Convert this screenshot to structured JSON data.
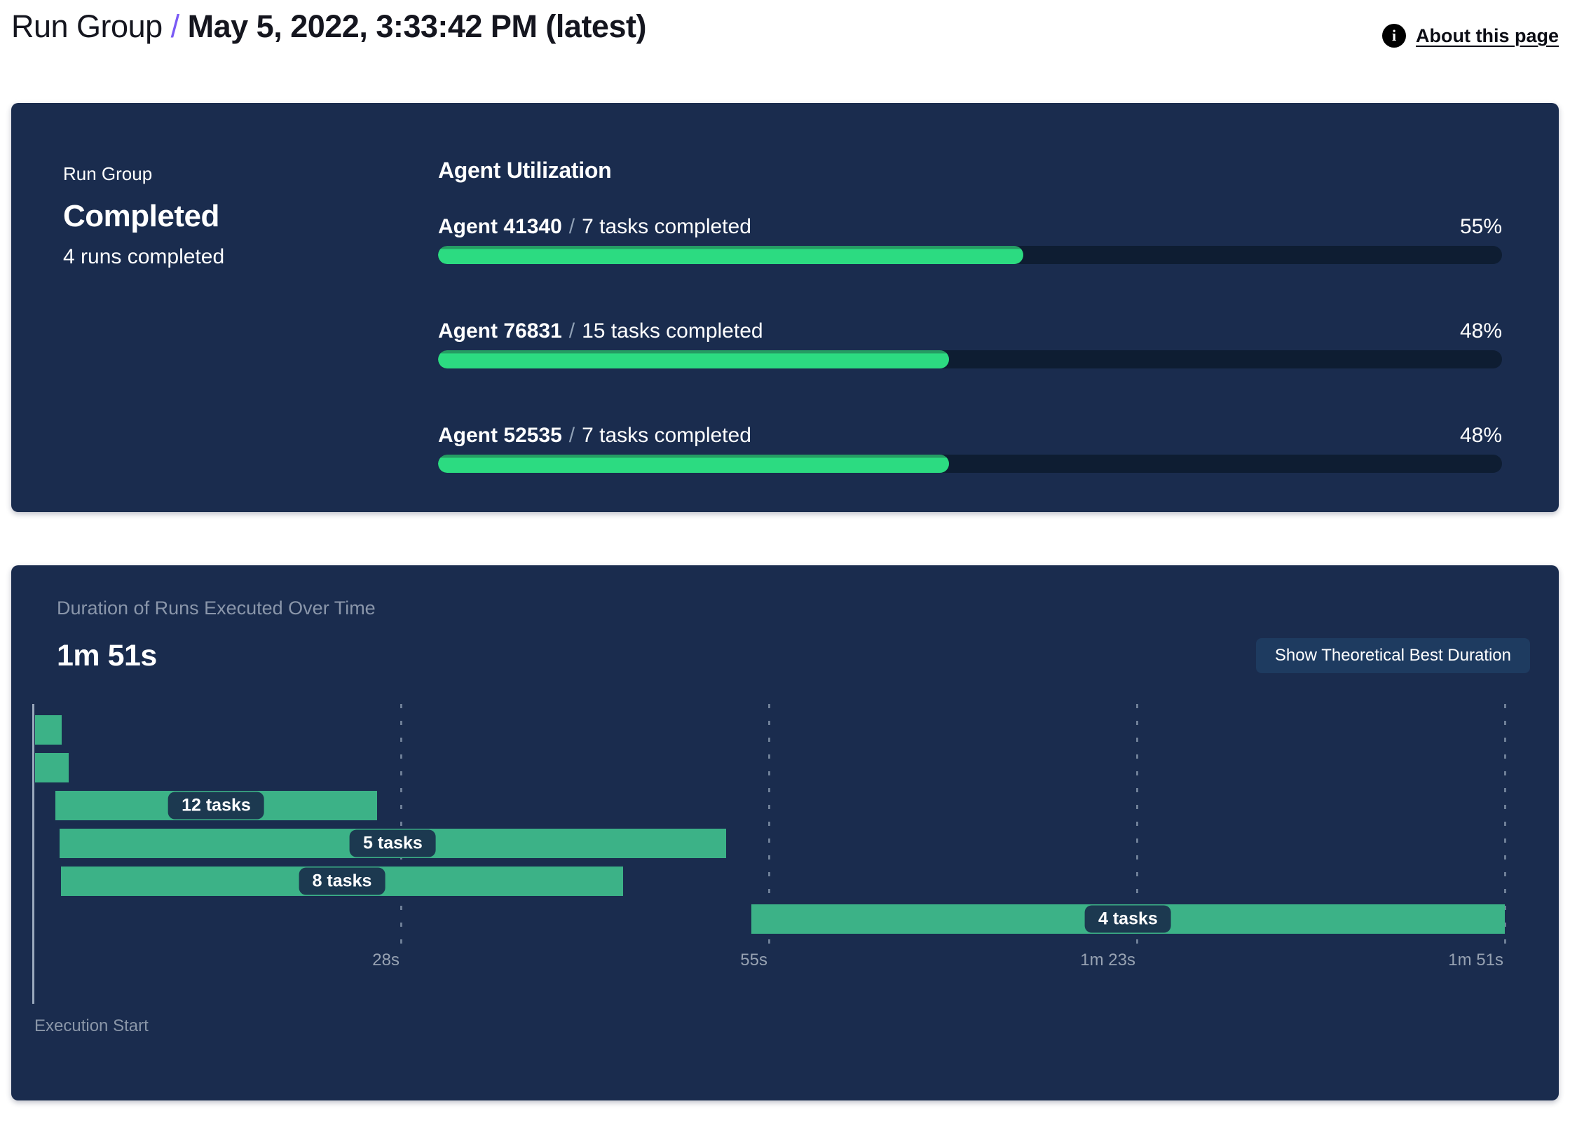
{
  "header": {
    "title": "Run Group",
    "separator": "/",
    "date": "May 5, 2022, 3:33:42 PM (latest)",
    "about_link": "About this page",
    "info_icon": "info-icon",
    "accent_color": "#7a5af5"
  },
  "status_card": {
    "label": "Run Group",
    "status": "Completed",
    "runs_summary": "4 runs completed"
  },
  "agent_utilization": {
    "title": "Agent Utilization",
    "agents": [
      {
        "name": "Agent 41340",
        "separator": "/",
        "tasks": "7 tasks completed",
        "percent": "55%",
        "percent_value": 55
      },
      {
        "name": "Agent 76831",
        "separator": "/",
        "tasks": "15 tasks completed",
        "percent": "48%",
        "percent_value": 48
      },
      {
        "name": "Agent 52535",
        "separator": "/",
        "tasks": "7 tasks completed",
        "percent": "48%",
        "percent_value": 48
      }
    ],
    "bar_fill_color": "#2cdb81",
    "bar_edge_color": "#259c63",
    "bar_track_color": "#0e1d32"
  },
  "duration_card": {
    "title": "Duration of Runs Executed Over Time",
    "total_duration": "1m 51s",
    "button_label": "Show Theoretical Best Duration",
    "execution_start_label": "Execution Start"
  },
  "chart_data": {
    "type": "gantt",
    "title": "Duration of Runs Executed Over Time",
    "total_duration_label": "1m 51s",
    "x_axis": {
      "range_seconds": [
        0,
        111
      ],
      "tick_labels": [
        "28s",
        "55s",
        "1m 23s",
        "1m 51s"
      ],
      "tick_positions_pct": [
        25,
        50,
        75,
        100
      ]
    },
    "bars": [
      {
        "label": "",
        "start_s": 0.2,
        "end_s": 2.2,
        "start_pct": 0.15,
        "width_pct": 1.8
      },
      {
        "label": "",
        "start_s": 0.2,
        "end_s": 2.7,
        "start_pct": 0.15,
        "width_pct": 2.3
      },
      {
        "label": "12 tasks",
        "start_s": 1.6,
        "end_s": 25.9,
        "start_pct": 1.5,
        "width_pct": 21.9
      },
      {
        "label": "5 tasks",
        "start_s": 2.0,
        "end_s": 52.3,
        "start_pct": 1.8,
        "width_pct": 45.3
      },
      {
        "label": "8 tasks",
        "start_s": 2.1,
        "end_s": 44.5,
        "start_pct": 1.9,
        "width_pct": 38.2
      },
      {
        "label": "4 tasks",
        "start_s": 54.1,
        "end_s": 111.0,
        "start_pct": 48.8,
        "width_pct": 51.2
      }
    ],
    "bar_color": "#3cb287",
    "grid_on": true,
    "background_color": "#1a2c4e"
  }
}
